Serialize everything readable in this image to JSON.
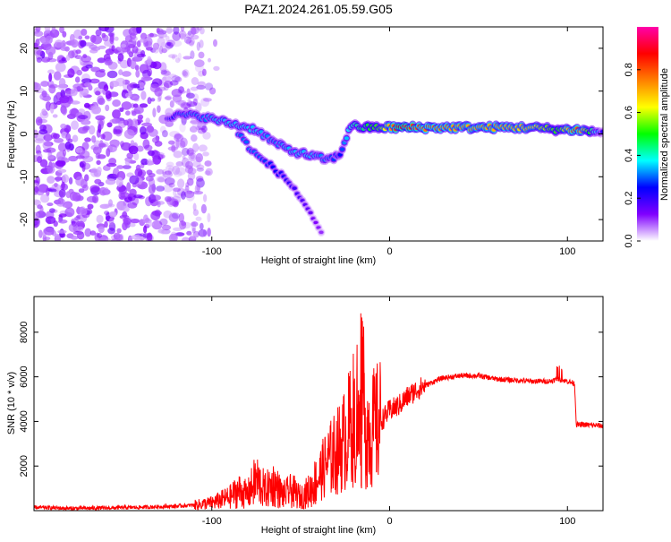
{
  "title": "PAZ1.2024.261.05.59.G05",
  "chart_data": [
    {
      "type": "heatmap",
      "title": "PAZ1.2024.261.05.59.G05",
      "xlabel": "Height of straight line (km)",
      "ylabel": "Frequency (Hz)",
      "xlim": [
        -200,
        120
      ],
      "ylim": [
        -25,
        25
      ],
      "x_ticks": [
        -100,
        0,
        100
      ],
      "y_ticks": [
        -20,
        -10,
        0,
        10,
        20
      ],
      "colorbar": {
        "label": "Normalized spectral amplitude",
        "range": [
          0,
          1
        ],
        "ticks": [
          0.0,
          0.2,
          0.4,
          0.6,
          0.8
        ],
        "colormap": [
          "#ffffff",
          "#8000ff",
          "#0000ff",
          "#00ffff",
          "#00ff00",
          "#ffff00",
          "#ff8000",
          "#ff0000",
          "#ff00aa"
        ]
      },
      "ridge": {
        "x": [
          -125,
          -115,
          -105,
          -95,
          -85,
          -75,
          -65,
          -55,
          -45,
          -35,
          -28,
          -22,
          -15,
          -5,
          5,
          20,
          40,
          60,
          80,
          95,
          105,
          115,
          120
        ],
        "y": [
          4,
          4.5,
          4,
          3,
          2,
          1,
          -2,
          -4,
          -5,
          -6,
          -5,
          2,
          1.5,
          1.5,
          1.5,
          1.5,
          1.5,
          1.5,
          1.5,
          1,
          1,
          0.5,
          0.5
        ],
        "amplitude": [
          0.2,
          0.3,
          0.3,
          0.35,
          0.35,
          0.35,
          0.3,
          0.35,
          0.35,
          0.3,
          0.25,
          0.4,
          0.45,
          0.55,
          0.85,
          0.75,
          0.7,
          0.7,
          0.65,
          0.5,
          0.8,
          0.4,
          0.2
        ]
      },
      "secondary_ridge": {
        "x": [
          -85,
          -75,
          -65,
          -55,
          -45,
          -38
        ],
        "y": [
          0,
          -5,
          -8,
          -12,
          -18,
          -24
        ],
        "amplitude": [
          0.3,
          0.3,
          0.25,
          0.2,
          0.15,
          0.1
        ]
      },
      "noise_region": {
        "x": [
          -200,
          -110
        ],
        "y": [
          -25,
          25
        ],
        "amplitude": 0.1
      }
    },
    {
      "type": "line",
      "xlabel": "Height of straight line (km)",
      "ylabel": "SNR (10 * v/v)",
      "xlim": [
        -200,
        120
      ],
      "ylim": [
        0,
        9600
      ],
      "x_ticks": [
        -100,
        0,
        100
      ],
      "y_ticks": [
        2000,
        4000,
        6000,
        8000
      ],
      "color": "#ff0000",
      "series": [
        {
          "x": [
            -200,
            -180,
            -160,
            -140,
            -120,
            -110,
            -100,
            -90,
            -85,
            -80,
            -75,
            -70,
            -65,
            -60,
            -55,
            -50,
            -45,
            -40,
            -35,
            -30,
            -25,
            -22,
            -20,
            -18,
            -15,
            -12,
            -10,
            -5,
            0,
            5,
            10,
            15,
            20,
            25,
            30,
            35,
            40,
            50,
            60,
            70,
            80,
            90,
            95,
            100,
            104,
            105,
            110,
            120
          ],
          "y": [
            150,
            100,
            120,
            150,
            200,
            250,
            350,
            600,
            900,
            700,
            1400,
            900,
            1200,
            700,
            900,
            600,
            900,
            1500,
            2200,
            2600,
            3200,
            3800,
            4200,
            3600,
            3500,
            3700,
            3600,
            4000,
            4500,
            4700,
            5100,
            5400,
            5600,
            5800,
            5950,
            6000,
            6050,
            6050,
            5900,
            5850,
            5800,
            5800,
            5900,
            5800,
            5700,
            3850,
            3850,
            3800
          ]
        }
      ]
    }
  ]
}
